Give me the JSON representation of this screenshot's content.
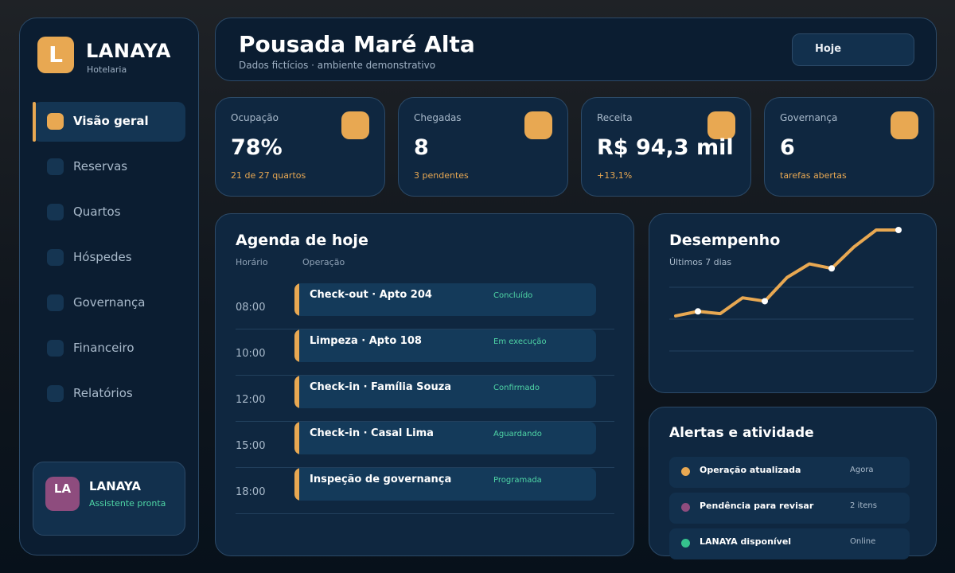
{
  "brand": {
    "logo_letter": "L",
    "name": "LANAYA",
    "subtitle": "Hotelaria"
  },
  "sidebar": {
    "items": [
      {
        "label": "Visão geral",
        "active": true
      },
      {
        "label": "Reservas",
        "active": false
      },
      {
        "label": "Quartos",
        "active": false
      },
      {
        "label": "Hóspedes",
        "active": false
      },
      {
        "label": "Governança",
        "active": false
      },
      {
        "label": "Financeiro",
        "active": false
      },
      {
        "label": "Relatórios",
        "active": false
      }
    ],
    "assistant": {
      "initials": "LA",
      "name": "LANAYA",
      "status": "Assistente pronta"
    }
  },
  "header": {
    "title": "Pousada Maré Alta",
    "subtitle": "Dados fictícios · ambiente demonstrativo",
    "today_label": "Hoje"
  },
  "kpis": [
    {
      "label": "Ocupação",
      "value": "78%",
      "note": "21 de 27 quartos"
    },
    {
      "label": "Chegadas",
      "value": "8",
      "note": "3 pendentes"
    },
    {
      "label": "Receita",
      "value": "R$ 94,3 mil",
      "note": "+13,1%"
    },
    {
      "label": "Governança",
      "value": "6",
      "note": "tarefas abertas"
    }
  ],
  "agenda": {
    "title": "Agenda de hoje",
    "col_time": "Horário",
    "col_operation": "Operação",
    "rows": [
      {
        "time": "08:00",
        "title": "Check-out · Apto 204",
        "status": "Concluído"
      },
      {
        "time": "10:00",
        "title": "Limpeza · Apto 108",
        "status": "Em execução"
      },
      {
        "time": "12:00",
        "title": "Check-in · Família Souza",
        "status": "Confirmado"
      },
      {
        "time": "15:00",
        "title": "Check-in · Casal Lima",
        "status": "Aguardando"
      },
      {
        "time": "18:00",
        "title": "Inspeção de governança",
        "status": "Programada"
      }
    ]
  },
  "performance": {
    "title": "Desempenho",
    "subtitle": "Últimos 7 dias"
  },
  "chart_data": {
    "type": "line",
    "title": "Desempenho",
    "subtitle": "Últimos 7 dias",
    "x": [
      1,
      2,
      3,
      4,
      5,
      6,
      7,
      8,
      9,
      10,
      11
    ],
    "series": [
      {
        "values": [
          24,
          28,
          26,
          40,
          37,
          58,
          70,
          66,
          85,
          100,
          100
        ]
      }
    ],
    "highlighted_points": [
      1,
      4,
      7,
      10
    ],
    "ylim": [
      0,
      100
    ],
    "grid": true,
    "line_color": "#e8a852"
  },
  "alerts": {
    "title": "Alertas e atividade",
    "items": [
      {
        "text": "Operação atualizada",
        "meta": "Agora",
        "color": "#e8a852"
      },
      {
        "text": "Pendência para revisar",
        "meta": "2 itens",
        "color": "#8e4c7e"
      },
      {
        "text": "LANAYA disponível",
        "meta": "Online",
        "color": "#35c28d"
      }
    ]
  }
}
